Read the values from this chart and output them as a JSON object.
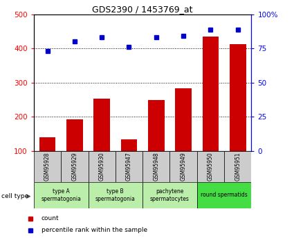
{
  "title": "GDS2390 / 1453769_at",
  "samples": [
    "GSM95928",
    "GSM95929",
    "GSM95930",
    "GSM95947",
    "GSM95948",
    "GSM95949",
    "GSM95950",
    "GSM95951"
  ],
  "counts": [
    140,
    193,
    253,
    135,
    250,
    284,
    435,
    412
  ],
  "percentile_ranks": [
    73,
    80,
    83,
    76,
    83,
    84,
    89,
    89
  ],
  "cell_type_configs": [
    {
      "xstart": 0,
      "xend": 2,
      "label": "type A\nspermatogonia",
      "color": "#bbeeaa"
    },
    {
      "xstart": 2,
      "xend": 4,
      "label": "type B\nspermatogonia",
      "color": "#bbeeaa"
    },
    {
      "xstart": 4,
      "xend": 6,
      "label": "pachytene\nspermatocytes",
      "color": "#bbeeaa"
    },
    {
      "xstart": 6,
      "xend": 8,
      "label": "round spermatids",
      "color": "#44dd44"
    }
  ],
  "bar_color": "#cc0000",
  "dot_color": "#0000cc",
  "sample_box_color": "#cccccc",
  "ylim_left": [
    100,
    500
  ],
  "ylim_right": [
    0,
    100
  ],
  "yticks_left": [
    100,
    200,
    300,
    400,
    500
  ],
  "yticks_right": [
    0,
    25,
    50,
    75,
    100
  ],
  "ytick_labels_right": [
    "0",
    "25",
    "50",
    "75",
    "100%"
  ],
  "grid_lines": [
    200,
    300,
    400
  ],
  "legend_count_label": "count",
  "legend_pct_label": "percentile rank within the sample",
  "cell_type_label": "cell type"
}
